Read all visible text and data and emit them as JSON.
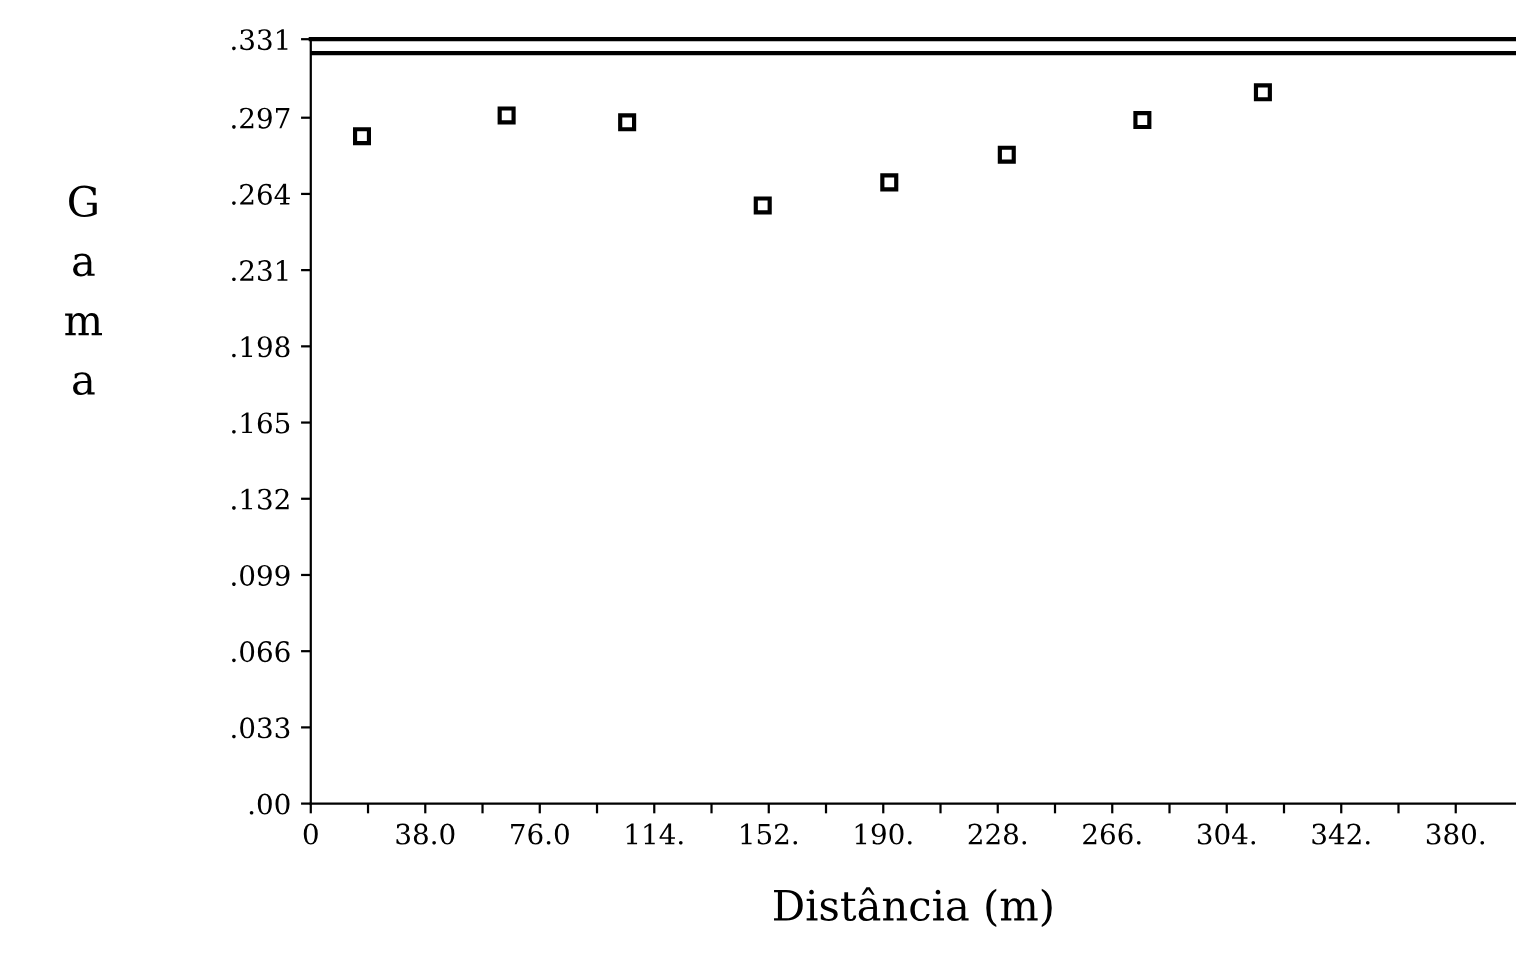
{
  "chart_data": {
    "type": "scatter",
    "xlabel": "Distância (m)",
    "ylabel": "Gama",
    "x": [
      17,
      65,
      105,
      150,
      192,
      231,
      276,
      316
    ],
    "values": [
      0.289,
      0.298,
      0.295,
      0.259,
      0.269,
      0.281,
      0.296,
      0.308
    ],
    "color": "#000000",
    "marker": "square",
    "xlim": [
      0,
      400
    ],
    "xticks": [
      0,
      {
        "value": 19,
        "label": null
      },
      {
        "value": 38,
        "label": "38.0"
      },
      {
        "value": 57,
        "label": null
      },
      {
        "value": 76,
        "label": "76.0"
      },
      {
        "value": 95,
        "label": null
      },
      {
        "value": 114,
        "label": "114."
      },
      {
        "value": 133,
        "label": null
      },
      {
        "value": 152,
        "label": "152."
      },
      {
        "value": 171,
        "label": null
      },
      {
        "value": 190,
        "label": "190."
      },
      {
        "value": 209,
        "label": null
      },
      {
        "value": 228,
        "label": "228."
      },
      {
        "value": 247,
        "label": null
      },
      {
        "value": 266,
        "label": "266."
      },
      {
        "value": 285,
        "label": null
      },
      {
        "value": 304,
        "label": "304."
      },
      {
        "value": 323,
        "label": null
      },
      {
        "value": 342,
        "label": "342."
      },
      {
        "value": 361,
        "label": null
      },
      {
        "value": 380,
        "label": "380."
      }
    ],
    "ylim": [
      0,
      0.331
    ],
    "yticks": [
      {
        "value": 0,
        "label": ".00"
      },
      {
        "value": 0.033,
        "label": ".033"
      },
      {
        "value": 0.066,
        "label": ".066"
      },
      {
        "value": 0.099,
        "label": ".099"
      },
      {
        "value": 0.132,
        "label": ".132"
      },
      {
        "value": 0.165,
        "label": ".165"
      },
      {
        "value": 0.198,
        "label": ".198"
      },
      {
        "value": 0.231,
        "label": ".231"
      },
      {
        "value": 0.264,
        "label": ".264"
      },
      {
        "value": 0.297,
        "label": ".297"
      },
      {
        "value": 0.331,
        "label": ".331"
      }
    ],
    "ref_lines": [
      {
        "axis": "y",
        "value": 0.325,
        "label": null,
        "color": "#000000"
      }
    ],
    "grid": false,
    "legend": false
  }
}
